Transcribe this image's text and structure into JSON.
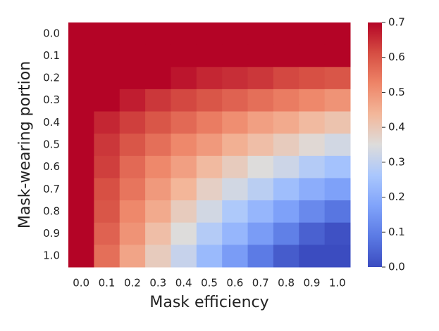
{
  "chart_data": {
    "type": "heatmap",
    "x_label": "Mask efficiency",
    "y_label": "Mask-wearing portion",
    "x_categories": [
      "0.0",
      "0.1",
      "0.2",
      "0.3",
      "0.4",
      "0.5",
      "0.6",
      "0.7",
      "0.8",
      "0.9",
      "1.0"
    ],
    "y_categories": [
      "0.0",
      "0.1",
      "0.2",
      "0.3",
      "0.4",
      "0.5",
      "0.6",
      "0.7",
      "0.8",
      "0.9",
      "1.0"
    ],
    "values": [
      [
        0.7,
        0.7,
        0.7,
        0.7,
        0.7,
        0.7,
        0.7,
        0.7,
        0.7,
        0.7,
        0.7
      ],
      [
        0.7,
        0.7,
        0.7,
        0.7,
        0.7,
        0.7,
        0.7,
        0.7,
        0.7,
        0.7,
        0.7
      ],
      [
        0.7,
        0.7,
        0.7,
        0.7,
        0.68,
        0.66,
        0.65,
        0.64,
        0.62,
        0.61,
        0.6
      ],
      [
        0.7,
        0.7,
        0.67,
        0.64,
        0.62,
        0.6,
        0.58,
        0.56,
        0.54,
        0.52,
        0.5
      ],
      [
        0.7,
        0.66,
        0.63,
        0.6,
        0.57,
        0.54,
        0.51,
        0.48,
        0.46,
        0.43,
        0.41
      ],
      [
        0.7,
        0.64,
        0.6,
        0.56,
        0.52,
        0.49,
        0.45,
        0.42,
        0.39,
        0.36,
        0.33
      ],
      [
        0.7,
        0.63,
        0.57,
        0.52,
        0.48,
        0.43,
        0.39,
        0.35,
        0.32,
        0.28,
        0.25
      ],
      [
        0.7,
        0.61,
        0.55,
        0.49,
        0.44,
        0.38,
        0.33,
        0.29,
        0.24,
        0.2,
        0.17
      ],
      [
        0.7,
        0.6,
        0.52,
        0.46,
        0.39,
        0.33,
        0.27,
        0.22,
        0.17,
        0.12,
        0.08
      ],
      [
        0.7,
        0.58,
        0.5,
        0.42,
        0.35,
        0.28,
        0.22,
        0.16,
        0.1,
        0.04,
        0.01
      ],
      [
        0.7,
        0.56,
        0.47,
        0.39,
        0.31,
        0.23,
        0.16,
        0.09,
        0.03,
        0.0,
        0.0
      ]
    ],
    "colormap": "coolwarm",
    "clim": [
      0,
      0.7
    ],
    "cticks": [
      {
        "value": 0,
        "label": "0.0"
      },
      0.1,
      0.2,
      0.3,
      0.4,
      0.5,
      0.6,
      0.7
    ]
  }
}
